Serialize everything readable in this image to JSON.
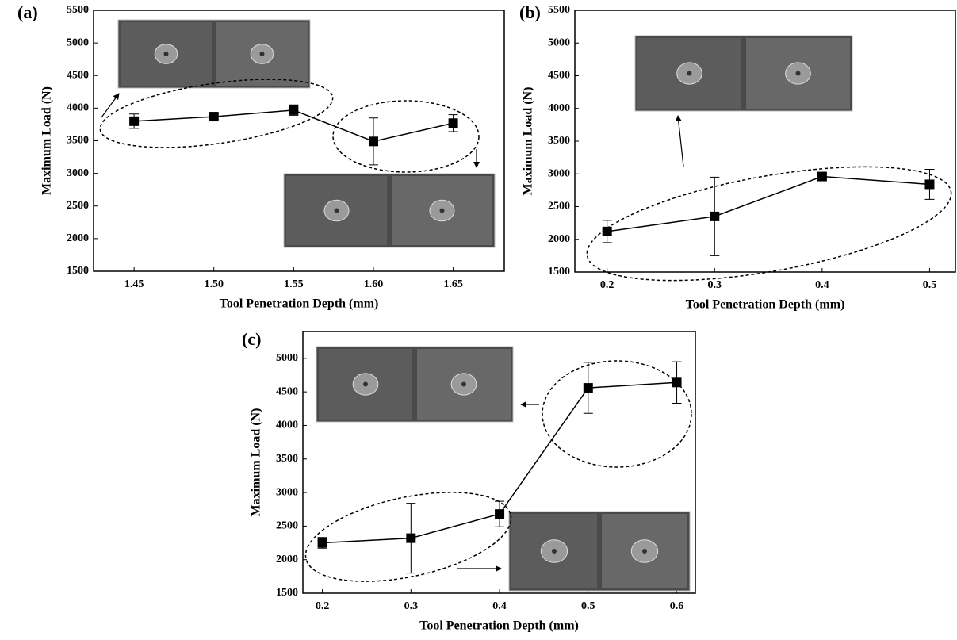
{
  "chart_data": [
    {
      "type": "line",
      "label": "(a)",
      "xlabel": "Tool Penetration Depth (mm)",
      "ylabel": "Maximum Load (N)",
      "x": [
        1.45,
        1.5,
        1.55,
        1.6,
        1.65
      ],
      "series": [
        {
          "color": "#000000",
          "values": [
            3800,
            3870,
            3970,
            3490,
            3770
          ],
          "errors": [
            110,
            40,
            80,
            360,
            130
          ]
        }
      ],
      "xlim": [
        1.4246,
        1.682
      ],
      "xticks": [
        1.45,
        {
          "value": 1.5,
          "label": "1.50"
        },
        1.55,
        {
          "value": 1.6,
          "label": "1.60"
        },
        1.65
      ],
      "ylim": [
        1500,
        5500
      ],
      "yticks": [
        1500,
        2000,
        2500,
        3000,
        3500,
        4000,
        4500,
        5000,
        5500
      ]
    },
    {
      "type": "line",
      "label": "(b)",
      "xlabel": "Tool Penetration Depth (mm)",
      "ylabel": "Maximum Load (N)",
      "x": [
        0.2,
        0.3,
        0.4,
        0.5
      ],
      "series": [
        {
          "color": "#000000",
          "values": [
            2120,
            2350,
            2960,
            2840
          ],
          "errors": [
            170,
            600,
            40,
            230
          ]
        }
      ],
      "xlim": [
        0.17,
        0.524
      ],
      "xticks": [
        0.2,
        0.3,
        0.4,
        0.5
      ],
      "ylim": [
        1500,
        5500
      ],
      "yticks": [
        1500,
        2000,
        2500,
        3000,
        3500,
        4000,
        4500,
        5000,
        5500
      ]
    },
    {
      "type": "line",
      "label": "(c)",
      "xlabel": "Tool Penetration Depth (mm)",
      "ylabel": "Maximum Load (N)",
      "x": [
        0.2,
        0.3,
        0.4,
        0.5,
        0.6
      ],
      "series": [
        {
          "color": "#000000",
          "values": [
            2250,
            2320,
            2680,
            4560,
            4640
          ],
          "errors": [
            80,
            520,
            190,
            380,
            310
          ]
        }
      ],
      "xlim": [
        0.178,
        0.621
      ],
      "xticks": [
        0.2,
        0.3,
        0.4,
        0.5,
        0.6
      ],
      "ylim": [
        1500,
        5400
      ],
      "yticks": [
        1500,
        2000,
        2500,
        3000,
        3500,
        4000,
        4500,
        5000
      ]
    }
  ]
}
